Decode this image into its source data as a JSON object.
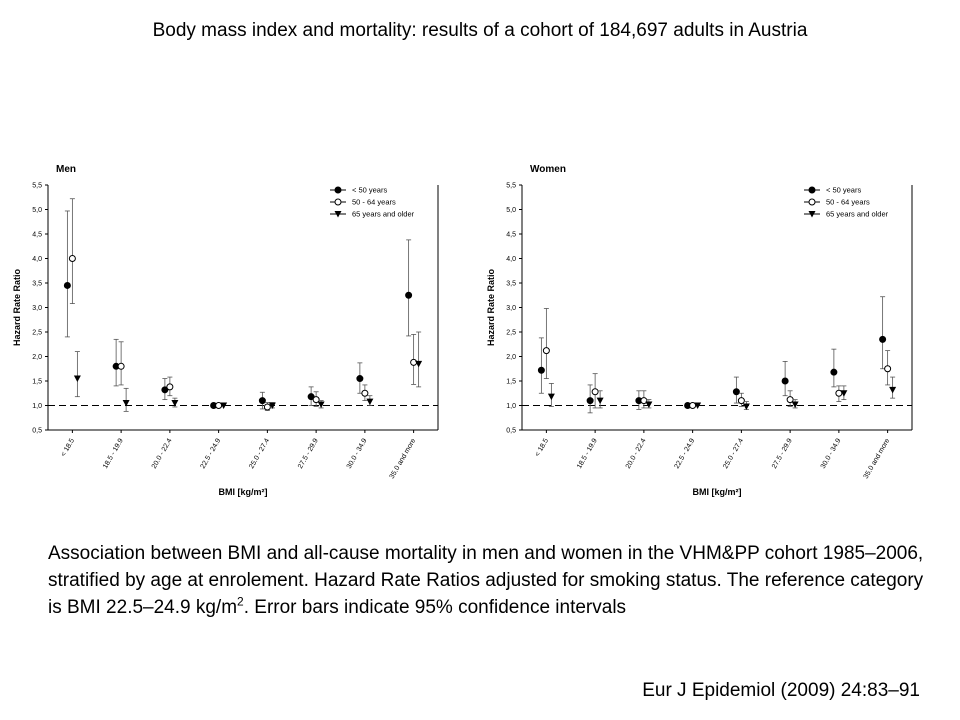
{
  "title": "Body mass index and mortality: results of a cohort of 184,697 adults in Austria",
  "caption": {
    "text_before": "Association between BMI and all-cause mortality in men and women in the VHM&PP cohort 1985–2006, stratified by age at enrolement. Hazard Rate Ratios adjusted for smoking status. The reference category is BMI 22.5–24.9 kg/m",
    "superscript": "2",
    "text_after": ". Error bars indicate 95% confidence intervals"
  },
  "citation": "Eur J Epidemiol (2009) 24:83–91",
  "chart_data": [
    {
      "type": "scatter",
      "panel_title": "Men",
      "xlabel": "BMI [kg/m²]",
      "ylabel": "Hazard Rate Ratio",
      "ylim": [
        0.5,
        5.5
      ],
      "yticks": [
        "0,5",
        "1,0",
        "1,5",
        "2,0",
        "2,5",
        "3,0",
        "3,5",
        "4,0",
        "4,5",
        "5,0",
        "5,5"
      ],
      "categories": [
        "< 18.5",
        "18.5 - 19.9",
        "20.0 - 22.4",
        "22.5 - 24.9",
        "25.0 - 27.4",
        "27.5 - 29.9",
        "30.0 - 34.9",
        "35.0 and more"
      ],
      "reference_line": 1.0,
      "legend_position": "top-right",
      "series": [
        {
          "name": "< 50 years",
          "marker": "filled-circle",
          "values": [
            3.45,
            1.8,
            1.32,
            1.0,
            1.1,
            1.18,
            1.55,
            3.25
          ],
          "ci_low": [
            2.4,
            1.4,
            1.12,
            1.0,
            0.93,
            1.0,
            1.25,
            2.42
          ],
          "ci_high": [
            4.97,
            2.35,
            1.55,
            1.0,
            1.27,
            1.38,
            1.87,
            4.38
          ]
        },
        {
          "name": "50 - 64 years",
          "marker": "open-circle",
          "values": [
            4.0,
            1.8,
            1.38,
            1.0,
            0.97,
            1.12,
            1.25,
            1.88
          ],
          "ci_low": [
            3.08,
            1.42,
            1.2,
            1.0,
            0.9,
            0.98,
            1.1,
            1.43
          ],
          "ci_high": [
            5.22,
            2.3,
            1.58,
            1.0,
            1.06,
            1.28,
            1.42,
            2.45
          ]
        },
        {
          "name": "65 years and older",
          "marker": "filled-triangle",
          "values": [
            1.55,
            1.05,
            1.05,
            1.0,
            1.0,
            1.02,
            1.08,
            1.85
          ],
          "ci_low": [
            1.18,
            0.88,
            0.97,
            1.0,
            0.95,
            0.95,
            1.0,
            1.38
          ],
          "ci_high": [
            2.1,
            1.35,
            1.15,
            1.0,
            1.06,
            1.1,
            1.2,
            2.5
          ]
        }
      ]
    },
    {
      "type": "scatter",
      "panel_title": "Women",
      "xlabel": "BMI [kg/m²]",
      "ylabel": "Hazard Rate Ratio",
      "ylim": [
        0.5,
        5.5
      ],
      "yticks": [
        "0,5",
        "1,0",
        "1,5",
        "2,0",
        "2,5",
        "3,0",
        "3,5",
        "4,0",
        "4,5",
        "5,0",
        "5,5"
      ],
      "categories": [
        "< 18.5",
        "18.5 - 19.9",
        "20.0 - 22.4",
        "22.5 - 24.9",
        "25.0 - 27.4",
        "27.5 - 29.9",
        "30.0 - 34.9",
        "35.0 and more"
      ],
      "reference_line": 1.0,
      "legend_position": "top-right",
      "series": [
        {
          "name": "< 50 years",
          "marker": "filled-circle",
          "values": [
            1.72,
            1.1,
            1.1,
            1.0,
            1.28,
            1.5,
            1.68,
            2.35
          ],
          "ci_low": [
            1.25,
            0.85,
            0.92,
            1.0,
            1.05,
            1.2,
            1.38,
            1.75
          ],
          "ci_high": [
            2.38,
            1.42,
            1.3,
            1.0,
            1.58,
            1.9,
            2.15,
            3.22
          ]
        },
        {
          "name": "50 - 64 years",
          "marker": "open-circle",
          "values": [
            2.12,
            1.28,
            1.1,
            1.0,
            1.1,
            1.12,
            1.25,
            1.75
          ],
          "ci_low": [
            1.55,
            0.95,
            0.95,
            1.0,
            0.98,
            0.98,
            1.08,
            1.42
          ],
          "ci_high": [
            2.98,
            1.65,
            1.3,
            1.0,
            1.25,
            1.3,
            1.4,
            2.12
          ]
        },
        {
          "name": "65 years and older",
          "marker": "filled-triangle",
          "values": [
            1.18,
            1.1,
            1.02,
            1.0,
            0.98,
            1.02,
            1.25,
            1.32
          ],
          "ci_low": [
            0.98,
            0.95,
            0.95,
            1.0,
            0.92,
            0.95,
            1.12,
            1.15
          ],
          "ci_high": [
            1.45,
            1.3,
            1.12,
            1.0,
            1.08,
            1.12,
            1.4,
            1.58
          ]
        }
      ]
    }
  ]
}
